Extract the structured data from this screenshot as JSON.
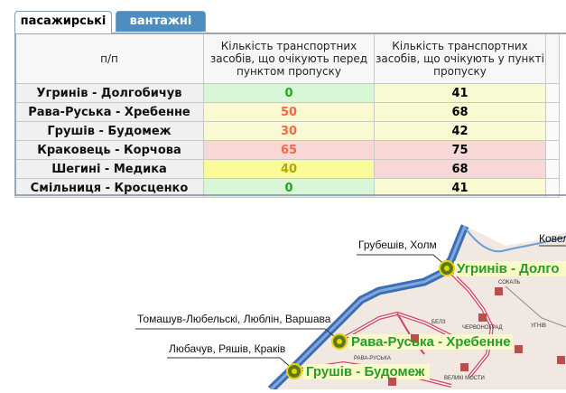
{
  "tabs": {
    "active": "пасажирські",
    "inactive": "вантажні"
  },
  "table": {
    "headers": {
      "col0": "п/п",
      "col1": "Кількість транспортних засобів, що очікують перед пунктом пропуску",
      "col2": "Кількість транспортних засобів, що очікують у пункті пропуску"
    },
    "rows": [
      {
        "name": "Угринів - Долгобичув",
        "before": "0",
        "inside": "41"
      },
      {
        "name": "Рава-Руська - Хребенне",
        "before": "50",
        "inside": "68"
      },
      {
        "name": "Грушів - Будомеж",
        "before": "30",
        "inside": "42"
      },
      {
        "name": "Краковець - Корчова",
        "before": "65",
        "inside": "75"
      },
      {
        "name": "Шегині - Медика",
        "before": "40",
        "inside": "68"
      },
      {
        "name": "Смільниця - Кросценко",
        "before": "0",
        "inside": "41"
      }
    ]
  },
  "map": {
    "labels": {
      "hrubieszow": "Грубешів, Холм",
      "kovel": "Ковел",
      "tomaszow": "Томашув-Любельскі, Люблін, Варшава",
      "lubaczow": "Любачув, Ряшів, Краків"
    },
    "points": {
      "uhryniv": "Угринів - Долго",
      "rava": "Рава-Руська - Хребенне",
      "hrushiv": "Грушів - Будомеж"
    },
    "towns": {
      "sokal": "СОКАЛЬ",
      "belz": "БЕЛЗ",
      "chervonohrad": "ЧЕРВОНОГРАД",
      "uhniv": "УГНІВ",
      "rava": "РАВА-РУСЬКА",
      "velyki_mosty": "ВЕЛИКІ МОСТИ"
    }
  },
  "colors": {
    "green": "#22a322",
    "orange": "#f06a4a",
    "olive": "#b5a600",
    "tab_blue": "#4d8ec0"
  }
}
